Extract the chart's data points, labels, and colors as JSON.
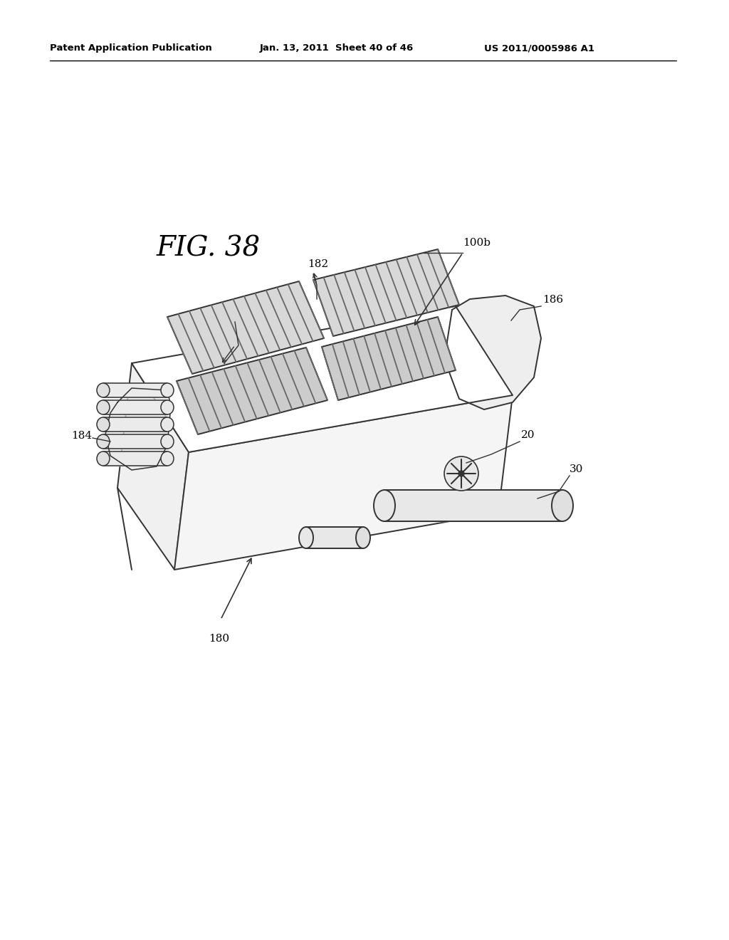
{
  "bg_color": "#ffffff",
  "line_color": "#333333",
  "header_left": "Patent Application Publication",
  "header_mid": "Jan. 13, 2011  Sheet 40 of 46",
  "header_right": "US 2011/0005986 A1",
  "fig_label": "FIG. 38",
  "page_width": 10.24,
  "page_height": 13.2
}
